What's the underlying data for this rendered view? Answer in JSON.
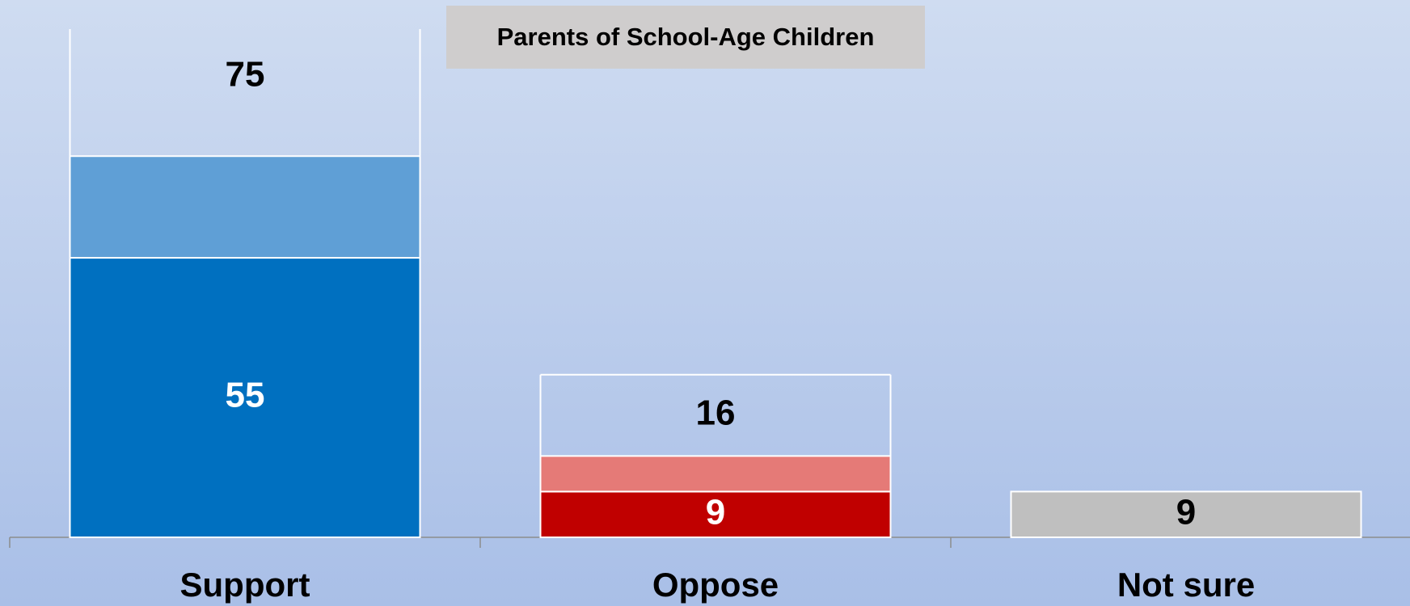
{
  "chart_data": {
    "type": "stacked_bar",
    "title": "Parents of School-Age Children",
    "categories": [
      "Support",
      "Oppose",
      "Not sure"
    ],
    "series": [
      {
        "colors": [
          "#0070c0",
          "#c00000",
          "#bfbfbf"
        ],
        "label_colors": [
          "#ffffff",
          "#ffffff",
          "#000000"
        ],
        "values": [
          55,
          9,
          9
        ]
      },
      {
        "colors": [
          "#5f9fd6",
          "#e57a77",
          "#bfbfbf"
        ],
        "values": [
          20,
          7,
          null
        ]
      }
    ],
    "totals": [
      75,
      16,
      null
    ],
    "ylim": [
      0,
      100
    ]
  }
}
